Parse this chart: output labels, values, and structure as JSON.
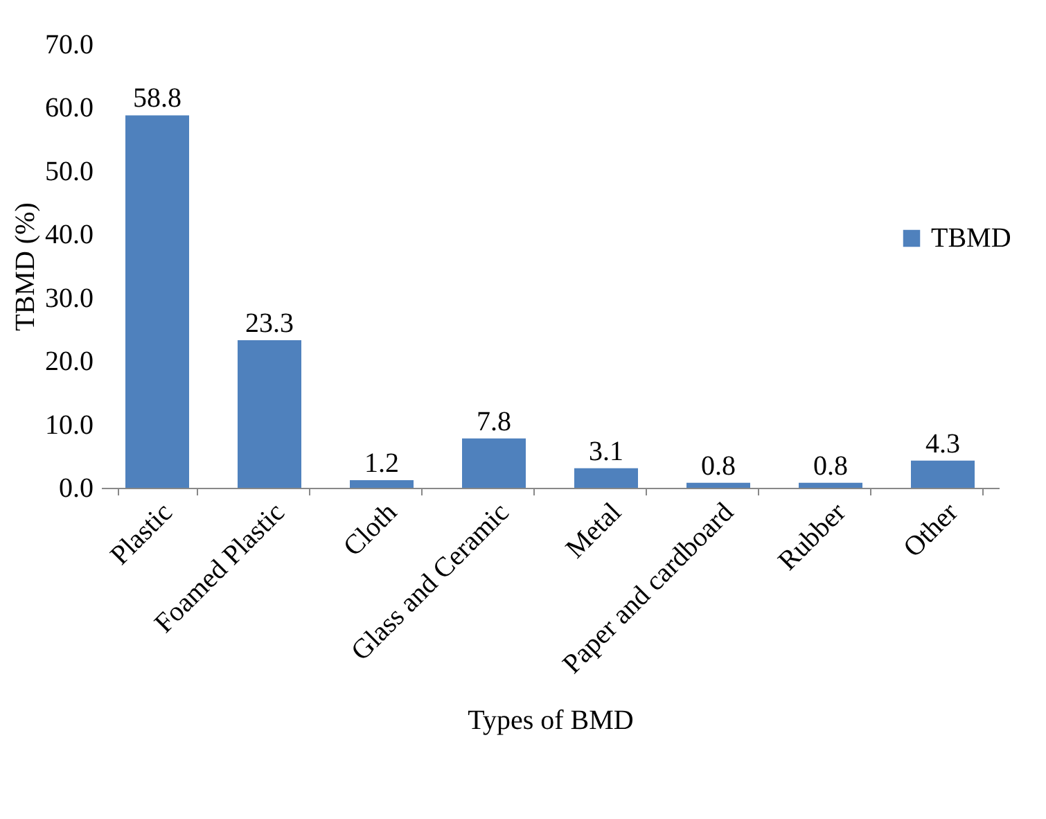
{
  "chart_data": {
    "type": "bar",
    "xlabel": "Types of BMD",
    "ylabel": "TBMD (%)",
    "categories": [
      "Plastic",
      "Foamed Plastic",
      "Cloth",
      "Glass and Ceramic",
      "Metal",
      "Paper and cardboard",
      "Rubber",
      "Other"
    ],
    "series": [
      {
        "name": "TBMD",
        "color": "#4f81bd",
        "values": [
          58.8,
          23.3,
          1.2,
          7.8,
          3.1,
          0.8,
          0.8,
          4.3
        ]
      }
    ],
    "ylim": [
      0,
      70
    ],
    "yticks": [
      {
        "value": 0,
        "label": "0.0"
      },
      {
        "value": 10,
        "label": "10.0"
      },
      {
        "value": 20,
        "label": "20.0"
      },
      {
        "value": 30,
        "label": "30.0"
      },
      {
        "value": 40,
        "label": "40.0"
      },
      {
        "value": 50,
        "label": "50.0"
      },
      {
        "value": 60,
        "label": "60.0"
      },
      {
        "value": 70,
        "label": "70.0"
      }
    ],
    "data_labels": true,
    "grid": false,
    "legend": "right"
  }
}
